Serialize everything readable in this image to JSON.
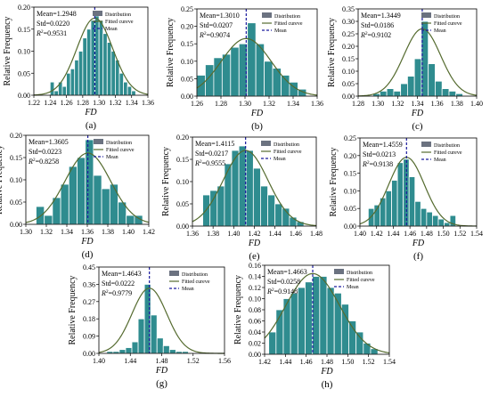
{
  "colors": {
    "bar": "#2f8c8f",
    "bar_stroke": "#ffffff",
    "curve": "#556b2f",
    "mean_line": "#1a1a9e",
    "legend_dist": "#6b7280"
  },
  "legend_labels": {
    "distribution": "Distribution",
    "fitted": "Fitted cureve",
    "mean": "Mean"
  },
  "chart_data": [
    {
      "type": "bar",
      "panel_label": "(a)",
      "xlabel": "FD",
      "ylabel": "Relative Frequency",
      "xlim": [
        1.22,
        1.36
      ],
      "ylim": [
        0,
        0.2
      ],
      "xticks": [
        "1.22",
        "1.24",
        "1.26",
        "1.28",
        "1.30",
        "1.32",
        "1.34",
        "1.36"
      ],
      "yticks": [
        "0.00",
        "0.05",
        "0.10",
        "0.15",
        "0.20"
      ],
      "bin_edges": [
        1.24,
        1.245,
        1.25,
        1.255,
        1.26,
        1.265,
        1.27,
        1.275,
        1.28,
        1.285,
        1.29,
        1.295,
        1.3,
        1.305,
        1.31,
        1.315,
        1.32,
        1.325,
        1.33,
        1.335,
        1.34,
        1.345
      ],
      "values": [
        0.03,
        0.01,
        0.03,
        0.02,
        0.05,
        0.06,
        0.08,
        0.1,
        0.13,
        0.15,
        0.17,
        0.18,
        0.17,
        0.14,
        0.12,
        0.1,
        0.08,
        0.05,
        0.03,
        0.02,
        0.01
      ],
      "mean": 1.2948,
      "std": 0.022,
      "r2": "0.9531",
      "curve_peak": 0.175,
      "stats": [
        "Mean=1.2948",
        "Std=0.0220",
        "=0.9531"
      ]
    },
    {
      "type": "bar",
      "panel_label": "(b)",
      "xlabel": "FD",
      "ylabel": "Relative Frequency",
      "xlim": [
        1.26,
        1.36
      ],
      "ylim": [
        0,
        0.25
      ],
      "xticks": [
        "1.26",
        "1.28",
        "1.30",
        "1.32",
        "1.34",
        "1.36"
      ],
      "yticks": [
        "0.00",
        "0.05",
        "0.10",
        "0.15",
        "0.20",
        "0.25"
      ],
      "bin_edges": [
        1.26,
        1.267,
        1.274,
        1.281,
        1.288,
        1.295,
        1.302,
        1.309,
        1.316,
        1.323,
        1.33,
        1.337,
        1.344,
        1.351
      ],
      "values": [
        0.06,
        0.09,
        0.11,
        0.12,
        0.14,
        0.15,
        0.21,
        0.15,
        0.1,
        0.08,
        0.06,
        0.04,
        0.02
      ],
      "mean": 1.301,
      "std": 0.0207,
      "r2": "0.9074",
      "curve_peak": 0.165,
      "stats": [
        "Mean=1.3010",
        "Std=0.0207",
        "=0.9074"
      ]
    },
    {
      "type": "bar",
      "panel_label": "(c)",
      "xlabel": "FD",
      "ylabel": "Relative Frequency",
      "xlim": [
        1.28,
        1.4
      ],
      "ylim": [
        0,
        0.35
      ],
      "xticks": [
        "1.28",
        "1.30",
        "1.32",
        "1.34",
        "1.36",
        "1.38",
        "1.40"
      ],
      "yticks": [
        "0.00",
        "0.05",
        "0.10",
        "0.15",
        "0.20",
        "0.25",
        "0.30",
        "0.35"
      ],
      "bin_edges": [
        1.295,
        1.302,
        1.309,
        1.316,
        1.323,
        1.33,
        1.337,
        1.344,
        1.351,
        1.358,
        1.365,
        1.372,
        1.379,
        1.386
      ],
      "values": [
        0.01,
        0.02,
        0.03,
        0.02,
        0.05,
        0.08,
        0.15,
        0.3,
        0.13,
        0.06,
        0.03,
        0.02,
        0.01
      ],
      "mean": 1.3449,
      "std": 0.0186,
      "r2": "0.9102",
      "curve_peak": 0.27,
      "stats": [
        "Mean=1.3449",
        "Std=0.0186",
        "=0.9102"
      ]
    },
    {
      "type": "bar",
      "panel_label": "(d)",
      "xlabel": "FD",
      "ylabel": "Relative Frequency",
      "xlim": [
        1.3,
        1.42
      ],
      "ylim": [
        0,
        0.2
      ],
      "xticks": [
        "1.30",
        "1.32",
        "1.34",
        "1.36",
        "1.38",
        "1.40",
        "1.42"
      ],
      "yticks": [
        "0.00",
        "0.05",
        "0.10",
        "0.15",
        "0.20"
      ],
      "bin_edges": [
        1.31,
        1.318,
        1.326,
        1.334,
        1.342,
        1.35,
        1.358,
        1.366,
        1.374,
        1.382,
        1.39,
        1.398,
        1.406,
        1.414
      ],
      "values": [
        0.04,
        0.02,
        0.06,
        0.09,
        0.13,
        0.15,
        0.19,
        0.11,
        0.08,
        0.09,
        0.05,
        0.02,
        0.02
      ],
      "mean": 1.3605,
      "std": 0.0223,
      "r2": "0.8258",
      "curve_peak": 0.16,
      "stats": [
        "Mean=1.3605",
        "Std=0.0223",
        "=0.8258"
      ]
    },
    {
      "type": "bar",
      "panel_label": "(e)",
      "xlabel": "FD",
      "ylabel": "Relative Frequency",
      "xlim": [
        1.36,
        1.48
      ],
      "ylim": [
        0,
        0.2
      ],
      "xticks": [
        "1.36",
        "1.38",
        "1.40",
        "1.42",
        "1.44",
        "1.46",
        "1.48"
      ],
      "yticks": [
        "0.00",
        "0.05",
        "0.10",
        "0.15",
        "0.20"
      ],
      "bin_edges": [
        1.37,
        1.377,
        1.384,
        1.391,
        1.398,
        1.405,
        1.412,
        1.419,
        1.426,
        1.433,
        1.44,
        1.447,
        1.454,
        1.461,
        1.468
      ],
      "values": [
        0.07,
        0.08,
        0.09,
        0.14,
        0.17,
        0.18,
        0.17,
        0.13,
        0.09,
        0.07,
        0.05,
        0.04,
        0.02,
        0.01
      ],
      "mean": 1.4115,
      "std": 0.0217,
      "r2": "0.9555",
      "curve_peak": 0.17,
      "stats": [
        "Mean=1.4115",
        "Std=0.0217",
        "=0.9555"
      ]
    },
    {
      "type": "bar",
      "panel_label": "(f)",
      "xlabel": "FD",
      "ylabel": "Relative Frequency",
      "xlim": [
        1.4,
        1.54
      ],
      "ylim": [
        0,
        0.25
      ],
      "xticks": [
        "1.40",
        "1.42",
        "1.44",
        "1.46",
        "1.48",
        "1.50",
        "1.52",
        "1.54"
      ],
      "yticks": [
        "0.00",
        "0.05",
        "0.10",
        "0.15",
        "0.20",
        "0.25"
      ],
      "bin_edges": [
        1.41,
        1.417,
        1.424,
        1.431,
        1.438,
        1.445,
        1.452,
        1.459,
        1.466,
        1.473,
        1.48,
        1.487,
        1.494,
        1.501,
        1.508,
        1.515
      ],
      "values": [
        0.05,
        0.06,
        0.08,
        0.1,
        0.13,
        0.18,
        0.19,
        0.14,
        0.07,
        0.05,
        0.04,
        0.03,
        0.02,
        0.01,
        0.03
      ],
      "mean": 1.4559,
      "std": 0.0213,
      "r2": "0.9138",
      "curve_peak": 0.195,
      "stats": [
        "Mean=1.4559",
        "Std=0.0213",
        "=0.9138"
      ]
    },
    {
      "type": "bar",
      "panel_label": "(g)",
      "xlabel": "FD",
      "ylabel": "Relative Frequency",
      "xlim": [
        1.4,
        1.56
      ],
      "ylim": [
        0,
        0.45
      ],
      "xticks": [
        "1.40",
        "1.44",
        "1.48",
        "1.52",
        "1.56"
      ],
      "yticks": [
        "0.00",
        "0.09",
        "0.18",
        "0.27",
        "0.36",
        "0.45"
      ],
      "bin_edges": [
        1.41,
        1.418,
        1.426,
        1.434,
        1.442,
        1.45,
        1.458,
        1.466,
        1.474,
        1.482,
        1.49,
        1.498,
        1.506,
        1.514
      ],
      "values": [
        0.01,
        0.01,
        0.02,
        0.03,
        0.06,
        0.18,
        0.36,
        0.2,
        0.08,
        0.04,
        0.02,
        0.01,
        0.01
      ],
      "mean": 1.4643,
      "std": 0.0222,
      "r2": "0.9779",
      "curve_peak": 0.34,
      "stats": [
        "Mean=1.4643",
        "Std=0.0222",
        "=0.9779"
      ]
    },
    {
      "type": "bar",
      "panel_label": "(h)",
      "xlabel": "FD",
      "ylabel": "Relative Frequency",
      "xlim": [
        1.42,
        1.54
      ],
      "ylim": [
        0,
        0.16
      ],
      "xticks": [
        "1.42",
        "1.44",
        "1.46",
        "1.48",
        "1.50",
        "1.52",
        "1.54"
      ],
      "yticks": [
        "0.00",
        "0.02",
        "0.04",
        "0.06",
        "0.08",
        "0.10",
        "0.12",
        "0.14",
        "0.16"
      ],
      "bin_edges": [
        1.424,
        1.431,
        1.438,
        1.445,
        1.452,
        1.459,
        1.466,
        1.473,
        1.48,
        1.487,
        1.494,
        1.501,
        1.508,
        1.515,
        1.522,
        1.529
      ],
      "values": [
        0.04,
        0.08,
        0.1,
        0.11,
        0.12,
        0.13,
        0.14,
        0.14,
        0.12,
        0.11,
        0.09,
        0.06,
        0.04,
        0.02,
        0.01
      ],
      "mean": 1.4663,
      "std": 0.0258,
      "r2": "0.9148",
      "curve_peak": 0.145,
      "stats": [
        "Mean=1.4663",
        "Std=0.0258",
        "=0.9148"
      ]
    }
  ]
}
